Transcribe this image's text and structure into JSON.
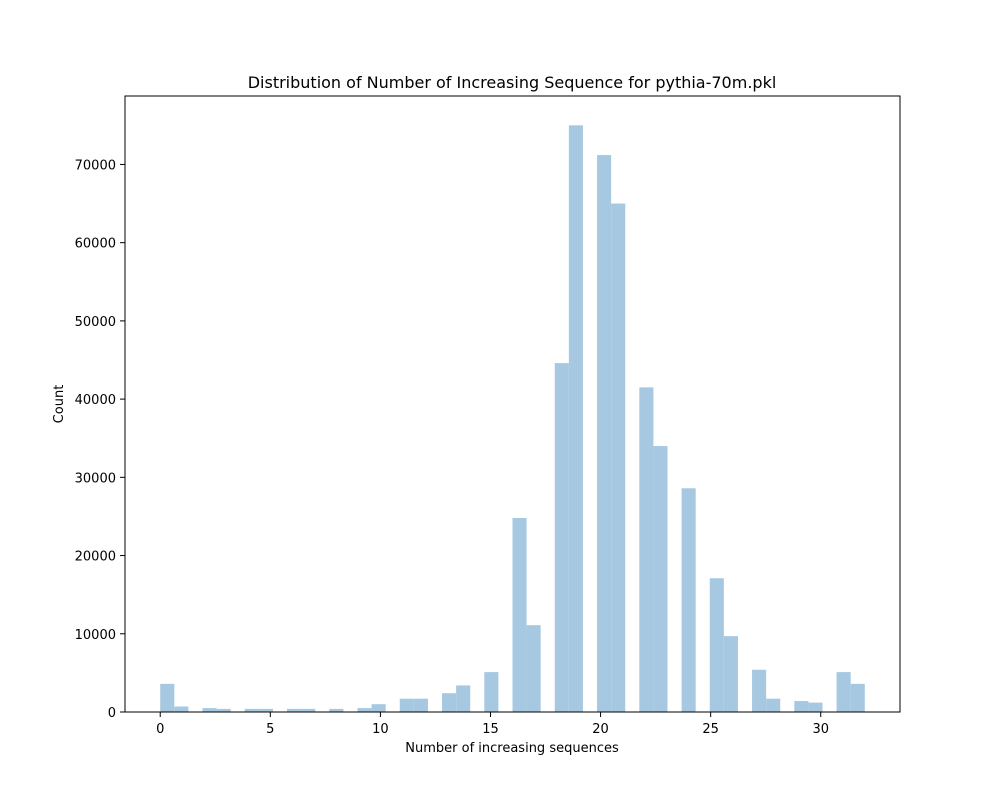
{
  "chart_data": {
    "type": "bar",
    "title": "Distribution of Number of  Increasing Sequence for pythia-70m.pkl",
    "xlabel": "Number of increasing sequences",
    "ylabel": "Count",
    "xlim": [
      -1.6,
      33.6
    ],
    "ylim": [
      0,
      78750
    ],
    "xticks": [
      0,
      5,
      10,
      15,
      20,
      25,
      30
    ],
    "yticks": [
      0,
      10000,
      20000,
      30000,
      40000,
      50000,
      60000,
      70000
    ],
    "bar_color": "#a6c8e0",
    "bars": [
      {
        "x0": 0.0,
        "x1": 0.64,
        "value": 3600
      },
      {
        "x0": 0.64,
        "x1": 1.28,
        "value": 700
      },
      {
        "x0": 1.92,
        "x1": 2.56,
        "value": 500
      },
      {
        "x0": 2.56,
        "x1": 3.2,
        "value": 400
      },
      {
        "x0": 3.84,
        "x1": 4.48,
        "value": 400
      },
      {
        "x0": 4.48,
        "x1": 5.12,
        "value": 400
      },
      {
        "x0": 5.76,
        "x1": 6.4,
        "value": 400
      },
      {
        "x0": 6.4,
        "x1": 7.04,
        "value": 400
      },
      {
        "x0": 7.68,
        "x1": 8.32,
        "value": 400
      },
      {
        "x0": 8.96,
        "x1": 9.6,
        "value": 500
      },
      {
        "x0": 9.6,
        "x1": 10.24,
        "value": 1000
      },
      {
        "x0": 10.88,
        "x1": 11.52,
        "value": 1700
      },
      {
        "x0": 11.52,
        "x1": 12.16,
        "value": 1700
      },
      {
        "x0": 12.8,
        "x1": 13.44,
        "value": 2400
      },
      {
        "x0": 13.44,
        "x1": 14.08,
        "value": 3400
      },
      {
        "x0": 14.72,
        "x1": 15.36,
        "value": 5100
      },
      {
        "x0": 16.0,
        "x1": 16.64,
        "value": 24800
      },
      {
        "x0": 16.64,
        "x1": 17.28,
        "value": 11100
      },
      {
        "x0": 17.92,
        "x1": 18.56,
        "value": 44600
      },
      {
        "x0": 18.56,
        "x1": 19.2,
        "value": 75000
      },
      {
        "x0": 19.84,
        "x1": 20.48,
        "value": 71200
      },
      {
        "x0": 20.48,
        "x1": 21.12,
        "value": 65000
      },
      {
        "x0": 21.76,
        "x1": 22.4,
        "value": 41500
      },
      {
        "x0": 22.4,
        "x1": 23.04,
        "value": 34000
      },
      {
        "x0": 23.68,
        "x1": 24.32,
        "value": 28600
      },
      {
        "x0": 24.96,
        "x1": 25.6,
        "value": 17100
      },
      {
        "x0": 25.6,
        "x1": 26.24,
        "value": 9700
      },
      {
        "x0": 26.88,
        "x1": 27.52,
        "value": 5400
      },
      {
        "x0": 27.52,
        "x1": 28.16,
        "value": 1700
      },
      {
        "x0": 28.8,
        "x1": 29.44,
        "value": 1400
      },
      {
        "x0": 29.44,
        "x1": 30.08,
        "value": 1200
      },
      {
        "x0": 30.72,
        "x1": 31.36,
        "value": 5100
      },
      {
        "x0": 31.36,
        "x1": 32.0,
        "value": 3600
      }
    ],
    "grid": false,
    "legend": "none"
  }
}
